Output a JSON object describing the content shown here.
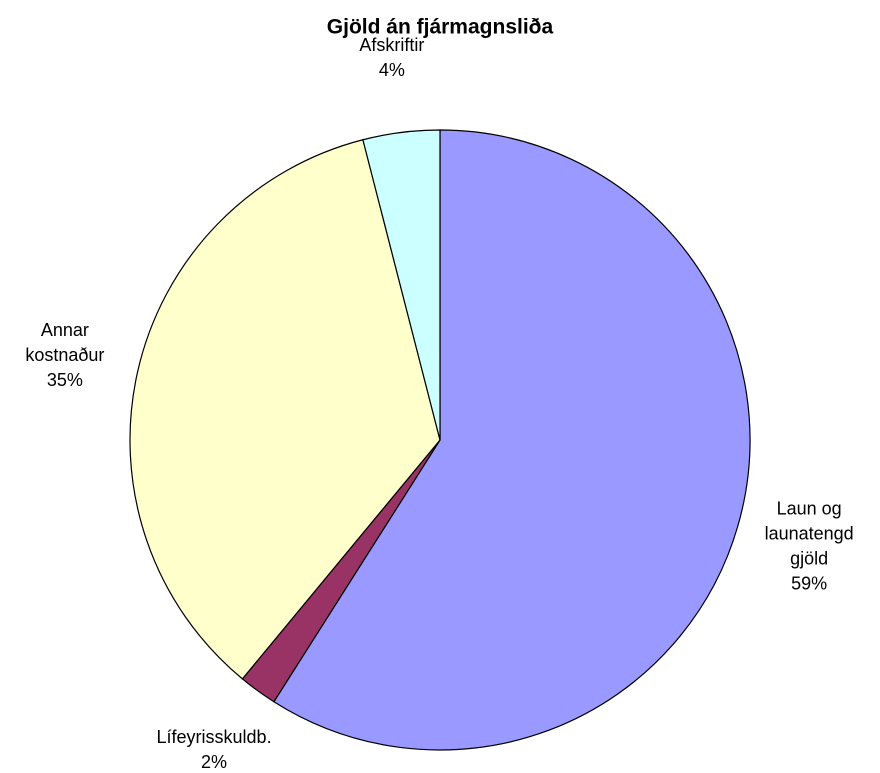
{
  "chart_data": {
    "type": "pie",
    "title": "Gjöld án fjármagnsliða",
    "categories": [
      [
        "Laun og",
        "launatengd",
        "gjöld"
      ],
      [
        "Lífeyrisskuldb."
      ],
      [
        "Annar",
        "kostnaður"
      ],
      [
        "Afskriftir"
      ]
    ],
    "values": [
      59,
      2,
      35,
      4
    ],
    "value_labels": [
      "59%",
      "2%",
      "35%",
      "4%"
    ],
    "colors": [
      "#9999ff",
      "#993366",
      "#ffffcc",
      "#ccffff"
    ]
  }
}
